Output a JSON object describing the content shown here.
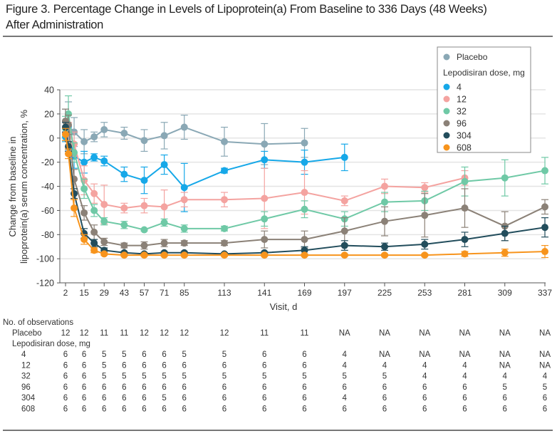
{
  "figure": {
    "title_line1": "Figure 3. Percentage Change in Levels of Lipoprotein(a) From Baseline to 336 Days (48 Weeks)",
    "title_line2": "After Administration"
  },
  "chart_data": {
    "type": "line",
    "title": "Figure 3. Percentage Change in Levels of Lipoprotein(a) From Baseline to 336 Days (48 Weeks) After Administration",
    "xlabel": "Visit, d",
    "ylabel_line1": "Change from baseline in",
    "ylabel_line2": "lipoprotein(a) serum concentration, %",
    "xlim": [
      0,
      340
    ],
    "ylim": [
      -120,
      40
    ],
    "yticks": [
      40,
      20,
      0,
      -20,
      -40,
      -60,
      -80,
      -100,
      -120
    ],
    "xticks": [
      2,
      15,
      29,
      43,
      57,
      71,
      85,
      113,
      141,
      169,
      197,
      225,
      253,
      281,
      309,
      337
    ],
    "grid": "horizontal",
    "legend": {
      "placement": "top-right",
      "placebo_label": "Placebo",
      "dose_header": "Lepodisiran dose, mg"
    },
    "series": [
      {
        "name": "Placebo",
        "color": "#8aa8b5",
        "x": [
          2,
          4,
          8,
          15,
          22,
          29,
          43,
          57,
          71,
          85,
          113,
          141,
          169
        ],
        "y": [
          14,
          10,
          5,
          -3,
          1,
          7,
          4,
          -2,
          2,
          9,
          -3,
          -5,
          -4
        ],
        "err": [
          10,
          20,
          12,
          10,
          4,
          6,
          5,
          9,
          11,
          10,
          12,
          17,
          12
        ]
      },
      {
        "name": "4",
        "color": "#16a8e8",
        "x": [
          2,
          4,
          8,
          15,
          22,
          29,
          43,
          57,
          71,
          85,
          113,
          141,
          169,
          197
        ],
        "y": [
          1,
          3,
          -15,
          -20,
          -16,
          -19,
          -30,
          -35,
          -22,
          -41,
          -27,
          -18,
          -20,
          -16
        ],
        "err": [
          4,
          6,
          10,
          9,
          3,
          4,
          6,
          11,
          8,
          20,
          2,
          7,
          10,
          11
        ]
      },
      {
        "name": "12",
        "color": "#f4a3a0",
        "x": [
          2,
          4,
          8,
          15,
          22,
          29,
          43,
          57,
          71,
          85,
          113,
          141,
          169,
          197,
          225,
          253,
          281
        ],
        "y": [
          4,
          5,
          -5,
          -35,
          -46,
          -55,
          -58,
          -56,
          -57,
          -51,
          -51,
          -50,
          -45,
          -52,
          -40,
          -41,
          -33
        ],
        "err": [
          6,
          8,
          10,
          12,
          8,
          16,
          4,
          6,
          14,
          6,
          6,
          25,
          18,
          4,
          6,
          4,
          6
        ]
      },
      {
        "name": "32",
        "color": "#6fc9a6",
        "x": [
          2,
          4,
          8,
          15,
          22,
          29,
          43,
          57,
          71,
          85,
          113,
          141,
          169,
          197,
          225,
          253,
          281,
          309,
          337
        ],
        "y": [
          8,
          20,
          -12,
          -42,
          -60,
          -69,
          -72,
          -76,
          -70,
          -75,
          -75,
          -67,
          -59,
          -67,
          -53,
          -52,
          -36,
          -33,
          -27
        ],
        "err": [
          10,
          15,
          8,
          8,
          5,
          3,
          3,
          1,
          3,
          3,
          2,
          6,
          7,
          6,
          8,
          8,
          12,
          15,
          11
        ]
      },
      {
        "name": "96",
        "color": "#8b8177",
        "x": [
          2,
          4,
          8,
          15,
          22,
          29,
          43,
          57,
          71,
          85,
          113,
          141,
          169,
          197,
          225,
          253,
          281,
          309,
          337
        ],
        "y": [
          14,
          11,
          -34,
          -62,
          -78,
          -86,
          -89,
          -89,
          -87,
          -87,
          -87,
          -84,
          -84,
          -77,
          -69,
          -64,
          -58,
          -73,
          -57
        ],
        "err": [
          10,
          8,
          8,
          6,
          6,
          3,
          2,
          3,
          3,
          2,
          2,
          7,
          7,
          11,
          12,
          18,
          16,
          12,
          6
        ]
      },
      {
        "name": "304",
        "color": "#224d5c",
        "x": [
          2,
          4,
          8,
          15,
          22,
          29,
          43,
          57,
          71,
          85,
          113,
          141,
          169,
          197,
          225,
          253,
          281,
          309,
          337
        ],
        "y": [
          9,
          -7,
          -46,
          -79,
          -87,
          -93,
          -95,
          -96,
          -95,
          -95,
          -96,
          -95,
          -93,
          -89,
          -90,
          -88,
          -84,
          -79,
          -74
        ],
        "err": [
          4,
          4,
          4,
          4,
          3,
          2,
          1,
          1,
          1,
          1,
          1,
          1,
          3,
          4,
          3,
          4,
          6,
          6,
          8
        ]
      },
      {
        "name": "608",
        "color": "#f7941d",
        "x": [
          2,
          4,
          8,
          15,
          22,
          29,
          43,
          57,
          71,
          85,
          113,
          141,
          169,
          197,
          225,
          253,
          281,
          309,
          337
        ],
        "y": [
          3,
          -13,
          -58,
          -84,
          -93,
          -96,
          -97,
          -97,
          -97,
          -97,
          -97,
          -97,
          -97,
          -97,
          -97,
          -97,
          -96,
          -95,
          -94
        ],
        "err": [
          5,
          4,
          7,
          4,
          2,
          1,
          1,
          1,
          1,
          1,
          1,
          1,
          1,
          1,
          1,
          1,
          2,
          3,
          5
        ]
      }
    ]
  },
  "observations": {
    "header": "No. of observations",
    "placebo_label": "Placebo",
    "dose_header": "Lepodisiran dose, mg",
    "placebo": [
      "12",
      "12",
      "11",
      "11",
      "12",
      "12",
      "12",
      "12",
      "11",
      "11",
      "NA",
      "NA",
      "NA",
      "NA",
      "NA",
      "NA"
    ],
    "doses": [
      {
        "label": "4",
        "values": [
          "6",
          "6",
          "5",
          "5",
          "6",
          "6",
          "5",
          "5",
          "6",
          "6",
          "4",
          "NA",
          "NA",
          "NA",
          "NA",
          "NA"
        ]
      },
      {
        "label": "12",
        "values": [
          "6",
          "6",
          "5",
          "6",
          "6",
          "6",
          "6",
          "6",
          "6",
          "6",
          "4",
          "4",
          "4",
          "4",
          "NA",
          "NA"
        ]
      },
      {
        "label": "32",
        "values": [
          "6",
          "6",
          "5",
          "5",
          "5",
          "5",
          "5",
          "5",
          "5",
          "5",
          "5",
          "5",
          "4",
          "4",
          "4",
          "4"
        ]
      },
      {
        "label": "96",
        "values": [
          "6",
          "6",
          "6",
          "6",
          "6",
          "6",
          "6",
          "6",
          "6",
          "6",
          "6",
          "6",
          "6",
          "6",
          "5",
          "5"
        ]
      },
      {
        "label": "304",
        "values": [
          "6",
          "6",
          "6",
          "6",
          "6",
          "5",
          "6",
          "6",
          "6",
          "6",
          "4",
          "6",
          "6",
          "6",
          "6",
          "6"
        ]
      },
      {
        "label": "608",
        "values": [
          "6",
          "6",
          "6",
          "6",
          "6",
          "6",
          "6",
          "6",
          "6",
          "6",
          "6",
          "6",
          "6",
          "6",
          "6",
          "6"
        ]
      }
    ]
  }
}
